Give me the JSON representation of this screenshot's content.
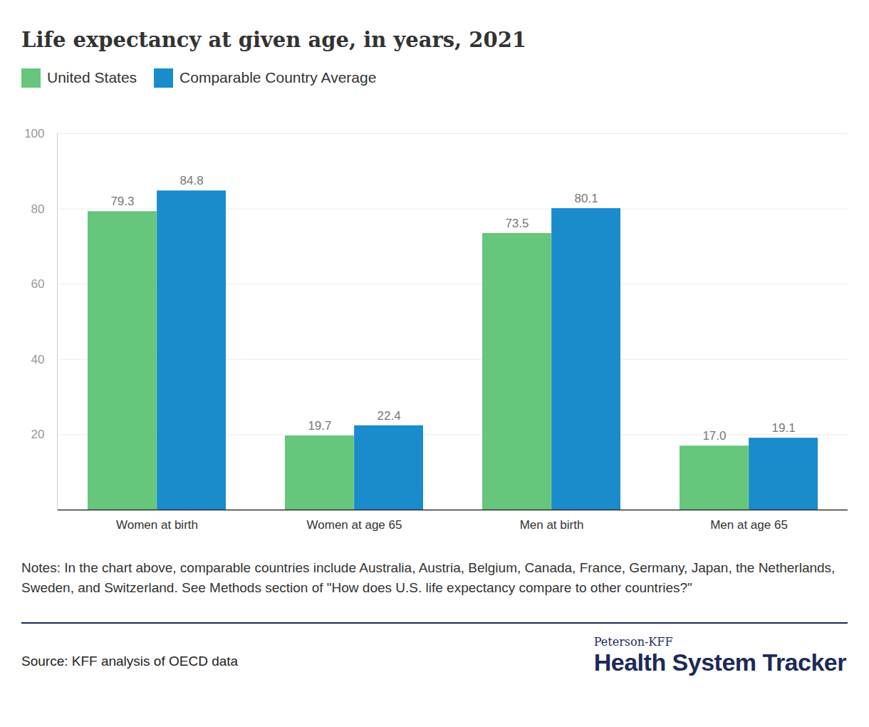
{
  "chart_data": {
    "type": "bar",
    "title": "Life expectancy at given age, in years, 2021",
    "categories": [
      "Women at birth",
      "Women at age 65",
      "Men at birth",
      "Men at age 65"
    ],
    "series": [
      {
        "name": "United States",
        "color": "#66c67b",
        "values": [
          79.3,
          19.7,
          73.5,
          17.0
        ],
        "value_labels": [
          "79.3",
          "19.7",
          "73.5",
          "17.0"
        ]
      },
      {
        "name": "Comparable Country Average",
        "color": "#1a8bcb",
        "values": [
          84.8,
          22.4,
          80.1,
          19.1
        ],
        "value_labels": [
          "84.8",
          "22.4",
          "80.1",
          "19.1"
        ]
      }
    ],
    "ylim": [
      0,
      100
    ],
    "yticks": [
      20,
      40,
      60,
      80,
      100
    ],
    "grid": true,
    "data_labels": true,
    "legend": "top-left",
    "notes": "Notes: In the chart above, comparable countries include Australia, Austria, Belgium, Canada, France, Germany, Japan, the Netherlands, Sweden, and Switzerland. See Methods section of \"How does U.S. life expectancy compare to other countries?\"",
    "source": "Source: KFF analysis of OECD data",
    "brand": {
      "name": "Peterson-KFF",
      "product": "Health System Tracker"
    }
  }
}
